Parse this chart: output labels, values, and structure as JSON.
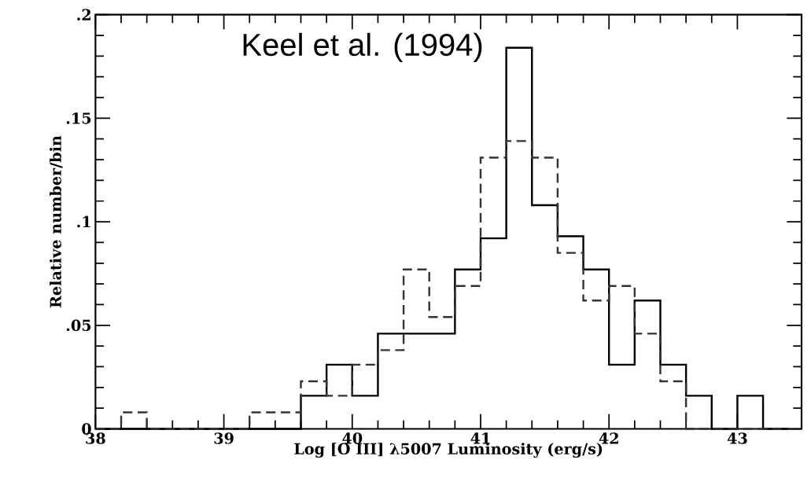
{
  "chart_data": {
    "type": "histogram",
    "xlabel": "Log [O III] λ5007 Luminosity (erg/s)",
    "ylabel": "Relative number/bin",
    "annotations": [
      "Keel et al. (1994)"
    ],
    "bins": [
      38.0,
      38.2,
      38.4,
      38.6,
      38.8,
      39.0,
      39.2,
      39.4,
      39.6,
      39.8,
      40.0,
      40.2,
      40.4,
      40.6,
      40.8,
      41.0,
      41.2,
      41.4,
      41.6,
      41.8,
      42.0,
      42.2,
      42.4,
      42.6,
      42.8,
      43.0,
      43.2,
      43.4
    ],
    "series": [
      {
        "color": "#000000",
        "line_style": "solid",
        "values": [
          0,
          0,
          0,
          0,
          0,
          0,
          0,
          0,
          0.016,
          0.031,
          0.016,
          0.046,
          0.046,
          0.046,
          0.077,
          0.092,
          0.184,
          0.108,
          0.093,
          0.077,
          0.031,
          0.062,
          0.031,
          0.016,
          0,
          0.016,
          0
        ]
      },
      {
        "color": "#333333",
        "line_style": "dashed",
        "values": [
          0,
          0.008,
          0,
          0,
          0,
          0,
          0.008,
          0.008,
          0.023,
          0.016,
          0.031,
          0.038,
          0.077,
          0.054,
          0.069,
          0.131,
          0.139,
          0.131,
          0.085,
          0.062,
          0.069,
          0.046,
          0.023,
          0,
          0,
          0,
          0
        ]
      }
    ],
    "xlim": [
      38,
      43.5
    ],
    "ylim": [
      0,
      0.2
    ],
    "xticks": [
      38,
      39,
      40,
      41,
      42,
      43
    ],
    "yticks": [
      {
        "value": 0,
        "label": "0"
      },
      {
        "value": 0.05,
        "label": ".05"
      },
      {
        "value": 0.1,
        "label": ".1"
      },
      {
        "value": 0.15,
        "label": ".15"
      },
      {
        "value": 0.2,
        "label": ".2"
      }
    ]
  }
}
